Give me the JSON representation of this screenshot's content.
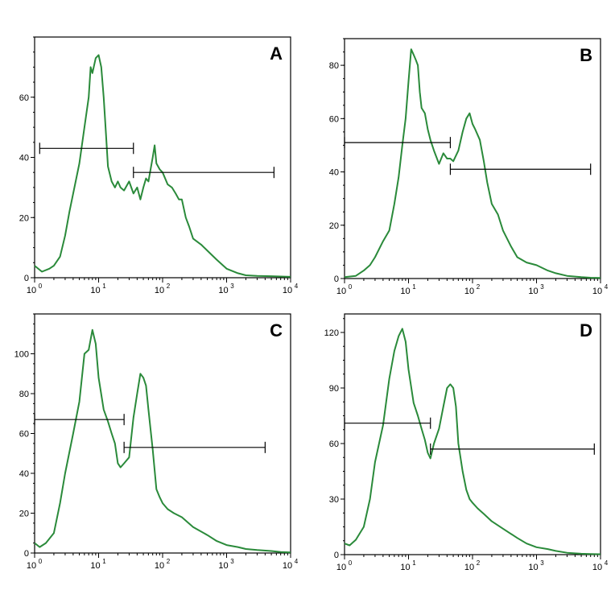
{
  "colors": {
    "curve": "#2a8a3a",
    "axis": "#000000"
  },
  "chart_data": [
    {
      "type": "line",
      "panel_label": "A",
      "xscale": "log",
      "xlim": [
        1,
        10000
      ],
      "x_tick_labels": [
        {
          "base": "10",
          "exp": "0"
        },
        {
          "base": "10",
          "exp": "1"
        },
        {
          "base": "10",
          "exp": "2"
        },
        {
          "base": "10",
          "exp": "3"
        },
        {
          "base": "10",
          "exp": "4"
        }
      ],
      "ylim": [
        0,
        80
      ],
      "y_ticks": [
        0,
        20,
        40,
        60
      ],
      "y_tick_labels": [
        "0",
        "20",
        "40",
        "60"
      ],
      "series": [
        {
          "x": [
            1,
            1.3,
            1.7,
            2,
            2.5,
            3,
            3.5,
            4,
            5,
            6,
            7,
            7.5,
            8,
            9,
            10,
            11,
            12,
            13,
            14,
            16,
            18,
            20,
            22,
            25,
            30,
            35,
            40,
            45,
            50,
            55,
            60,
            70,
            75,
            80,
            90,
            100,
            120,
            140,
            160,
            180,
            200,
            230,
            260,
            300,
            400,
            500,
            700,
            1000,
            1500,
            2000,
            3000,
            5000,
            7000,
            10000
          ],
          "y": [
            4,
            2,
            3,
            4,
            7,
            14,
            22,
            28,
            38,
            50,
            60,
            70,
            68,
            73,
            74,
            70,
            60,
            48,
            37,
            32,
            30,
            32,
            30,
            29,
            32,
            28,
            30,
            26,
            30,
            33,
            32,
            40,
            44,
            38,
            36,
            35,
            31,
            30,
            28,
            26,
            26,
            20,
            17,
            13,
            11,
            9,
            6,
            3,
            1.5,
            0.8,
            0.6,
            0.5,
            0.4,
            0.3
          ]
        }
      ],
      "gates": [
        {
          "x1": 1.2,
          "x2": 35,
          "y": 43
        },
        {
          "x1": 35,
          "x2": 5500,
          "y": 35
        }
      ]
    },
    {
      "type": "line",
      "panel_label": "B",
      "xscale": "log",
      "xlim": [
        1,
        10000
      ],
      "x_tick_labels": [
        {
          "base": "10",
          "exp": "0"
        },
        {
          "base": "10",
          "exp": "1"
        },
        {
          "base": "10",
          "exp": "2"
        },
        {
          "base": "10",
          "exp": "3"
        },
        {
          "base": "10",
          "exp": "4"
        }
      ],
      "ylim": [
        0,
        90
      ],
      "y_ticks": [
        0,
        20,
        40,
        60,
        80
      ],
      "y_tick_labels": [
        "0",
        "20",
        "40",
        "60",
        "80"
      ],
      "series": [
        {
          "x": [
            1,
            1.5,
            2,
            2.5,
            3,
            4,
            5,
            6,
            7,
            8,
            9,
            10,
            11,
            12,
            13,
            14,
            15,
            16,
            18,
            20,
            22,
            25,
            30,
            35,
            40,
            45,
            50,
            60,
            70,
            80,
            90,
            100,
            110,
            130,
            150,
            170,
            200,
            250,
            300,
            400,
            500,
            700,
            1000,
            1500,
            2000,
            3000,
            5000,
            7000,
            10000
          ],
          "y": [
            0.5,
            1,
            3,
            5,
            8,
            14,
            18,
            28,
            38,
            50,
            60,
            74,
            86,
            84,
            82,
            80,
            70,
            64,
            62,
            56,
            52,
            48,
            43,
            47,
            45,
            45,
            44,
            48,
            55,
            60,
            62,
            58,
            56,
            52,
            44,
            36,
            28,
            24,
            18,
            12,
            8,
            6,
            5,
            3,
            2,
            1,
            0.5,
            0.3,
            0.2
          ]
        }
      ],
      "gates": [
        {
          "x1": 1,
          "x2": 45,
          "y": 51
        },
        {
          "x1": 45,
          "x2": 7000,
          "y": 41
        }
      ]
    },
    {
      "type": "line",
      "panel_label": "C",
      "xscale": "log",
      "xlim": [
        1,
        10000
      ],
      "x_tick_labels": [
        {
          "base": "10",
          "exp": "0"
        },
        {
          "base": "10",
          "exp": "1"
        },
        {
          "base": "10",
          "exp": "2"
        },
        {
          "base": "10",
          "exp": "3"
        },
        {
          "base": "10",
          "exp": "4"
        }
      ],
      "ylim": [
        0,
        120
      ],
      "y_ticks": [
        0,
        20,
        40,
        60,
        80,
        100
      ],
      "y_tick_labels": [
        "0",
        "20",
        "40",
        "60",
        "80",
        "100"
      ],
      "series": [
        {
          "x": [
            1,
            1.2,
            1.5,
            2,
            2.5,
            3,
            4,
            5,
            6,
            7,
            8,
            9,
            10,
            12,
            14,
            16,
            18,
            20,
            22,
            25,
            30,
            35,
            40,
            45,
            50,
            55,
            60,
            70,
            80,
            90,
            100,
            120,
            150,
            200,
            300,
            500,
            700,
            1000,
            1500,
            2000,
            3000,
            5000,
            7000,
            10000
          ],
          "y": [
            5,
            3,
            5,
            10,
            25,
            40,
            60,
            76,
            100,
            102,
            112,
            105,
            88,
            72,
            66,
            60,
            55,
            45,
            43,
            45,
            48,
            68,
            80,
            90,
            88,
            84,
            72,
            52,
            32,
            28,
            25,
            22,
            20,
            18,
            13,
            9,
            6,
            4,
            3,
            2,
            1.5,
            1,
            0.5,
            0.3
          ]
        }
      ],
      "gates": [
        {
          "x1": 1,
          "x2": 25,
          "y": 67
        },
        {
          "x1": 25,
          "x2": 4000,
          "y": 53
        }
      ]
    },
    {
      "type": "line",
      "panel_label": "D",
      "xscale": "log",
      "xlim": [
        1,
        10000
      ],
      "x_tick_labels": [
        {
          "base": "10",
          "exp": "0"
        },
        {
          "base": "10",
          "exp": "1"
        },
        {
          "base": "10",
          "exp": "2"
        },
        {
          "base": "10",
          "exp": "3"
        },
        {
          "base": "10",
          "exp": "4"
        }
      ],
      "ylim": [
        0,
        130
      ],
      "y_ticks": [
        0,
        30,
        60,
        90,
        120
      ],
      "y_tick_labels": [
        "0",
        "30",
        "60",
        "90",
        "120"
      ],
      "series": [
        {
          "x": [
            1,
            1.2,
            1.5,
            2,
            2.5,
            3,
            4,
            5,
            6,
            7,
            8,
            9,
            10,
            12,
            14,
            16,
            18,
            20,
            22,
            25,
            30,
            35,
            40,
            45,
            50,
            55,
            60,
            70,
            80,
            90,
            100,
            120,
            150,
            200,
            300,
            500,
            700,
            1000,
            1500,
            2000,
            3000,
            5000,
            7000,
            10000
          ],
          "y": [
            6,
            5,
            8,
            15,
            30,
            50,
            70,
            95,
            110,
            118,
            122,
            115,
            100,
            82,
            75,
            68,
            62,
            55,
            52,
            60,
            68,
            80,
            90,
            92,
            90,
            80,
            60,
            45,
            35,
            30,
            28,
            25,
            22,
            18,
            14,
            9,
            6,
            4,
            3,
            2,
            1,
            0.5,
            0.3,
            0.2
          ]
        }
      ],
      "gates": [
        {
          "x1": 1,
          "x2": 22,
          "y": 71
        },
        {
          "x1": 22,
          "x2": 8000,
          "y": 57
        }
      ]
    }
  ]
}
